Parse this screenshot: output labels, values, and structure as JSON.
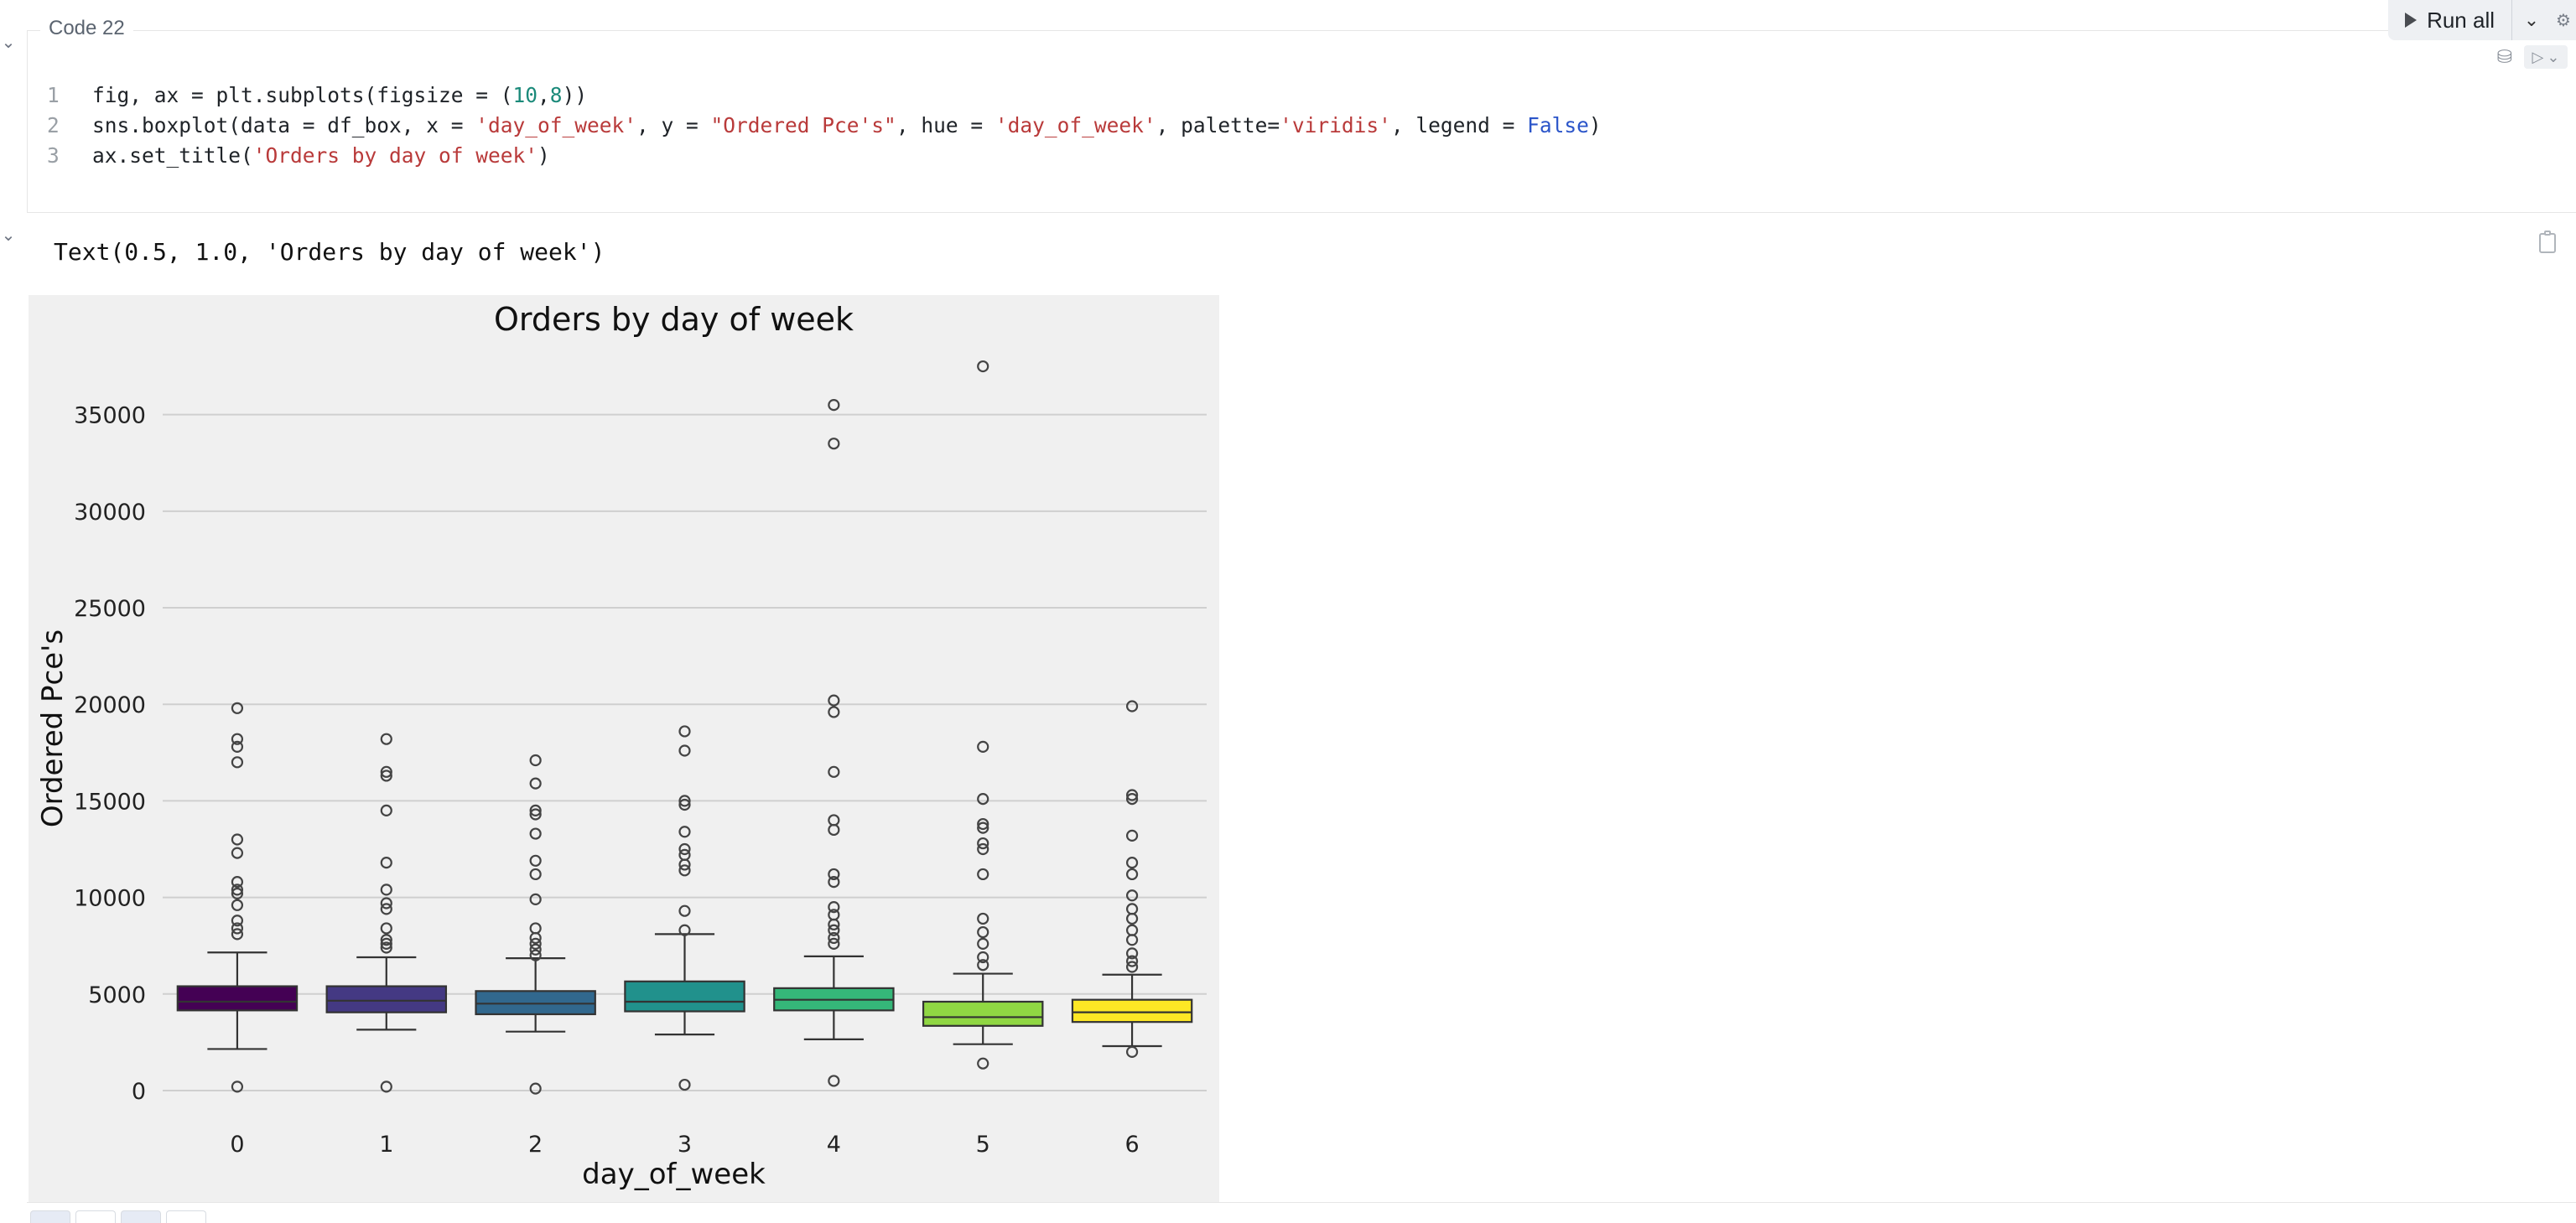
{
  "cell": {
    "label": "Code 22",
    "code_lines": [
      {
        "num": "1",
        "tokens": [
          {
            "t": "fig, ax = plt.subplots(figsize = (",
            "c": ""
          },
          {
            "t": "10",
            "c": "num"
          },
          {
            "t": ",",
            "c": ""
          },
          {
            "t": "8",
            "c": "num"
          },
          {
            "t": "))",
            "c": ""
          }
        ]
      },
      {
        "num": "2",
        "tokens": [
          {
            "t": "sns.boxplot(data = df_box, x = ",
            "c": ""
          },
          {
            "t": "'day_of_week'",
            "c": "str"
          },
          {
            "t": ", y = ",
            "c": ""
          },
          {
            "t": "\"Ordered Pce's\"",
            "c": "str"
          },
          {
            "t": ", hue = ",
            "c": ""
          },
          {
            "t": "'day_of_week'",
            "c": "str"
          },
          {
            "t": ", palette=",
            "c": ""
          },
          {
            "t": "'viridis'",
            "c": "str"
          },
          {
            "t": ", legend = ",
            "c": ""
          },
          {
            "t": "False",
            "c": "kw"
          },
          {
            "t": ")",
            "c": ""
          }
        ]
      },
      {
        "num": "3",
        "tokens": [
          {
            "t": "ax.set_title(",
            "c": ""
          },
          {
            "t": "'Orders by day of week'",
            "c": "str"
          },
          {
            "t": ")",
            "c": ""
          }
        ]
      }
    ]
  },
  "toolbar": {
    "run_all_label": "Run all",
    "chevron": "chevron-down-icon"
  },
  "output": {
    "text": "Text(0.5, 1.0, 'Orders by day of week')"
  },
  "chart_data": {
    "type": "box",
    "title": "Orders by day of week",
    "xlabel": "day_of_week",
    "ylabel": "Ordered Pce's",
    "ylim": [
      -1000,
      38500
    ],
    "yticks": [
      0,
      5000,
      10000,
      15000,
      20000,
      25000,
      30000,
      35000
    ],
    "grid": "horizontal",
    "legend": false,
    "categories": [
      "0",
      "1",
      "2",
      "3",
      "4",
      "5",
      "6"
    ],
    "colors": [
      "#440154",
      "#443983",
      "#31688e",
      "#21918c",
      "#35b779",
      "#90d743",
      "#fde725"
    ],
    "boxes": [
      {
        "q1": 4150,
        "median": 4600,
        "q3": 5400,
        "whislo": 2150,
        "whishi": 7150,
        "fliers": [
          200,
          8100,
          8400,
          8800,
          9600,
          10200,
          10400,
          10800,
          12300,
          13000,
          17000,
          17800,
          18200,
          19800
        ]
      },
      {
        "q1": 4050,
        "median": 4650,
        "q3": 5400,
        "whislo": 3150,
        "whishi": 6900,
        "fliers": [
          200,
          7400,
          7600,
          7800,
          8400,
          9400,
          9700,
          10400,
          11800,
          14500,
          16300,
          16500,
          18200
        ]
      },
      {
        "q1": 3950,
        "median": 4500,
        "q3": 5150,
        "whislo": 3050,
        "whishi": 6850,
        "fliers": [
          100,
          7000,
          7300,
          7600,
          7900,
          8400,
          9900,
          11200,
          11900,
          13300,
          14300,
          14500,
          15900,
          17100
        ]
      },
      {
        "q1": 4100,
        "median": 4600,
        "q3": 5650,
        "whislo": 2900,
        "whishi": 8100,
        "fliers": [
          300,
          8300,
          9300,
          11400,
          11700,
          12200,
          12500,
          13400,
          14800,
          15000,
          17600,
          18600
        ]
      },
      {
        "q1": 4150,
        "median": 4700,
        "q3": 5300,
        "whislo": 2650,
        "whishi": 6950,
        "fliers": [
          500,
          7600,
          7900,
          8300,
          8600,
          9100,
          9500,
          10800,
          11200,
          13500,
          14000,
          16500,
          19600,
          20200,
          33500,
          35500
        ]
      },
      {
        "q1": 3350,
        "median": 3800,
        "q3": 4600,
        "whislo": 2400,
        "whishi": 6050,
        "fliers": [
          1400,
          6500,
          6900,
          7600,
          8200,
          8900,
          11200,
          12500,
          12800,
          13600,
          13800,
          15100,
          17800,
          37500
        ]
      },
      {
        "q1": 3550,
        "median": 4050,
        "q3": 4700,
        "whislo": 2300,
        "whishi": 6000,
        "fliers": [
          2000,
          6400,
          6700,
          7100,
          7800,
          8300,
          8900,
          9400,
          10100,
          11200,
          11800,
          13200,
          15100,
          15300,
          19900
        ]
      }
    ]
  }
}
